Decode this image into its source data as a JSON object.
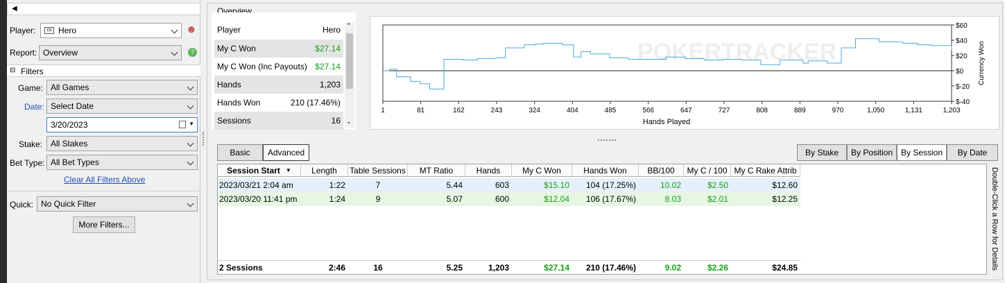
{
  "left": {
    "player_label": "Player:",
    "player_value": "Hero",
    "report_label": "Report:",
    "report_value": "Overview",
    "filters_label": "Filters",
    "game_label": "Game:",
    "game_value": "All Games",
    "date_label": "Date:",
    "date_value": "Select Date",
    "date_input": "3/20/2023",
    "stake_label": "Stake:",
    "stake_value": "All Stakes",
    "bettype_label": "Bet Type:",
    "bettype_value": "All Bet Types",
    "clear_link": "Clear All Filters Above",
    "quick_label": "Quick:",
    "quick_value": "No Quick Filter",
    "more_filters": "More Filters..."
  },
  "overview": {
    "title": "Overview",
    "rows": [
      {
        "label": "Player",
        "value": "Hero"
      },
      {
        "label": "My C Won",
        "value": "$27.14"
      },
      {
        "label": "My C Won (Inc Payouts)",
        "value": "$27.14"
      },
      {
        "label": "Hands",
        "value": "1,203"
      },
      {
        "label": "Hands Won",
        "value": "210 (17.46%)"
      },
      {
        "label": "Sessions",
        "value": "16"
      }
    ]
  },
  "chart_data": {
    "type": "line",
    "xlabel": "Hands Played",
    "ylabel": "Currency Won",
    "watermark": "POKERTRACKER",
    "xticks": [
      "1",
      "81",
      "162",
      "243",
      "324",
      "404",
      "485",
      "566",
      "647",
      "727",
      "808",
      "889",
      "970",
      "1,050",
      "1,131",
      "1,203"
    ],
    "yticks": [
      "$60",
      "$40",
      "$20",
      "$0",
      "$-20",
      "$-40"
    ],
    "xlim": [
      1,
      1203
    ],
    "ylim": [
      -40,
      60
    ],
    "x": [
      1,
      15,
      30,
      40,
      60,
      80,
      100,
      130,
      170,
      200,
      240,
      260,
      300,
      324,
      340,
      380,
      404,
      420,
      440,
      480,
      520,
      560,
      600,
      640,
      680,
      720,
      760,
      800,
      840,
      889,
      900,
      940,
      970,
      1000,
      1050,
      1100,
      1131,
      1160,
      1203
    ],
    "y": [
      0,
      2,
      -8,
      -8,
      -14,
      -17,
      -24,
      15,
      14,
      16,
      17,
      30,
      34,
      35,
      36,
      34,
      18,
      25,
      22,
      17,
      15,
      15,
      18,
      16,
      14,
      15,
      14,
      8,
      14,
      10,
      13,
      10,
      30,
      42,
      38,
      36,
      34,
      33,
      27
    ],
    "grid": false
  },
  "tabs": {
    "basic": "Basic",
    "advanced": "Advanced"
  },
  "group_by": [
    "By Stake",
    "By Position",
    "By Session",
    "By Date"
  ],
  "table": {
    "headers": [
      "Session Start",
      "Length",
      "Table Sessions",
      "MT Ratio",
      "Hands",
      "My C Won",
      "Hands Won",
      "BB/100",
      "My C / 100",
      "My C Rake Attrib"
    ],
    "rows": [
      [
        "2023/03/21  2:04 am",
        "1:22",
        "7",
        "5.44",
        "603",
        "$15.10",
        "104 (17.25%)",
        "10.02",
        "$2.50",
        "$12.60"
      ],
      [
        "2023/03/20 11:41 pm",
        "1:24",
        "9",
        "5.07",
        "600",
        "$12.04",
        "106 (17.67%)",
        "8.03",
        "$2.01",
        "$12.25"
      ]
    ],
    "totals": [
      "2 Sessions",
      "2:46",
      "16",
      "5.25",
      "1,203",
      "$27.14",
      "210 (17.46%)",
      "9.02",
      "$2.26",
      "$24.85"
    ],
    "side_hint": "Double-Click a Row for Details"
  },
  "colors": {
    "line": "#4aa8d8",
    "green": "#16a016",
    "row1": "#e8f2fb",
    "row2": "#e6f7e6"
  }
}
